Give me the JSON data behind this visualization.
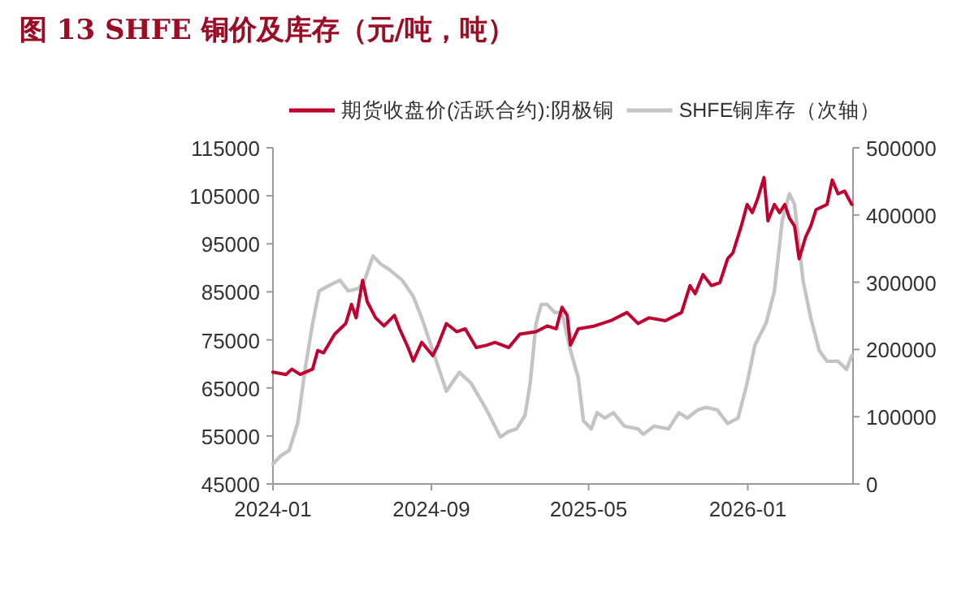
{
  "chart_data": {
    "type": "line",
    "title": "图 13  SHFE 铜价及库存（元/吨，吨）",
    "legend": "top",
    "marker": "none",
    "line_style": "solid",
    "grid": false,
    "xlim": [
      "2024-01-01",
      "2026-06-12"
    ],
    "xticks": [
      "2024-01",
      "2024-09",
      "2025-05",
      "2026-01"
    ],
    "ylim": [
      45000,
      115000
    ],
    "yticks": [
      45000,
      55000,
      65000,
      75000,
      85000,
      95000,
      105000,
      115000
    ],
    "y2lim": [
      0,
      500000
    ],
    "y2ticks": [
      0,
      100000,
      200000,
      300000,
      400000,
      500000
    ],
    "series": [
      {
        "name": "期货收盘价(活跃合约):阴极铜",
        "color": "#c0002f",
        "x": [
          "2024-01-01",
          "2024-01-21",
          "2024-01-30",
          "2024-02-12",
          "2024-03-02",
          "2024-03-10",
          "2024-03-19",
          "2024-04-05",
          "2024-04-22",
          "2024-05-01",
          "2024-05-08",
          "2024-05-18",
          "2024-05-25",
          "2024-06-07",
          "2024-06-20",
          "2024-07-06",
          "2024-07-14",
          "2024-07-27",
          "2024-08-04",
          "2024-08-17",
          "2024-09-03",
          "2024-09-11",
          "2024-09-24",
          "2024-10-10",
          "2024-10-23",
          "2024-11-09",
          "2024-11-25",
          "2024-12-08",
          "2024-12-29",
          "2025-01-15",
          "2025-02-09",
          "2025-02-26",
          "2025-03-12",
          "2025-03-21",
          "2025-03-29",
          "2025-04-03",
          "2025-04-15",
          "2025-05-10",
          "2025-06-04",
          "2025-06-29",
          "2025-07-16",
          "2025-08-02",
          "2025-08-27",
          "2025-09-21",
          "2025-10-04",
          "2025-10-12",
          "2025-10-24",
          "2025-11-06",
          "2025-11-19",
          "2025-12-01",
          "2025-12-09",
          "2025-12-22",
          "2025-12-31",
          "2026-01-08",
          "2026-01-16",
          "2026-01-26",
          "2026-02-01",
          "2026-02-11",
          "2026-02-19",
          "2026-02-27",
          "2026-03-06",
          "2026-03-14",
          "2026-03-21",
          "2026-03-31",
          "2026-04-08",
          "2026-04-16",
          "2026-05-03",
          "2026-05-11",
          "2026-05-20",
          "2026-05-30",
          "2026-06-10"
        ],
        "values": [
          68300,
          67800,
          68900,
          67800,
          68900,
          72800,
          72300,
          76200,
          78400,
          82400,
          79600,
          87400,
          83000,
          79600,
          77900,
          80100,
          77300,
          73400,
          70600,
          74500,
          71700,
          73900,
          78400,
          76700,
          77300,
          73400,
          73900,
          74500,
          73400,
          76200,
          76700,
          77900,
          77300,
          81800,
          80100,
          73900,
          77300,
          77900,
          79000,
          80700,
          78400,
          79600,
          79000,
          80700,
          86300,
          84600,
          88600,
          86300,
          86900,
          91900,
          93100,
          98700,
          103200,
          101500,
          104300,
          108800,
          99800,
          103200,
          101500,
          103200,
          100400,
          98700,
          91900,
          96400,
          98700,
          102100,
          103200,
          108300,
          105400,
          106000,
          103200
        ]
      },
      {
        "name": "SHFE铜库存（次轴）",
        "color": "#c4c4c4",
        "axis": "y2",
        "x": [
          "2024-01-01",
          "2024-01-13",
          "2024-01-26",
          "2024-02-08",
          "2024-02-20",
          "2024-03-02",
          "2024-03-12",
          "2024-03-27",
          "2024-04-13",
          "2024-04-26",
          "2024-05-12",
          "2024-05-21",
          "2024-06-03",
          "2024-06-15",
          "2024-06-28",
          "2024-07-18",
          "2024-08-04",
          "2024-08-17",
          "2024-09-03",
          "2024-09-24",
          "2024-10-14",
          "2024-11-01",
          "2024-11-25",
          "2024-12-16",
          "2024-12-29",
          "2025-01-10",
          "2025-01-23",
          "2025-01-31",
          "2025-02-09",
          "2025-02-17",
          "2025-02-26",
          "2025-03-10",
          "2025-03-21",
          "2025-04-03",
          "2025-04-15",
          "2025-04-23",
          "2025-05-05",
          "2025-05-14",
          "2025-05-26",
          "2025-06-08",
          "2025-06-25",
          "2025-07-16",
          "2025-07-24",
          "2025-08-10",
          "2025-09-01",
          "2025-09-17",
          "2025-09-30",
          "2025-10-16",
          "2025-10-29",
          "2025-11-15",
          "2025-12-01",
          "2025-12-17",
          "2025-12-31",
          "2026-01-12",
          "2026-01-29",
          "2026-02-11",
          "2026-02-23",
          "2026-03-06",
          "2026-03-14",
          "2026-03-27",
          "2026-04-08",
          "2026-04-21",
          "2026-05-03",
          "2026-05-20",
          "2026-06-02",
          "2026-06-10"
        ],
        "values": [
          29700,
          41800,
          49800,
          90000,
          174000,
          238700,
          287000,
          295000,
          303000,
          287000,
          291000,
          303000,
          339000,
          327000,
          319000,
          303000,
          279000,
          247000,
          198500,
          138000,
          166000,
          150000,
          110000,
          70000,
          78000,
          82000,
          102000,
          150000,
          238700,
          267000,
          267000,
          255000,
          255000,
          198500,
          158000,
          94000,
          82000,
          106000,
          98000,
          106000,
          86000,
          82000,
          74000,
          86000,
          82000,
          106000,
          98000,
          110000,
          114000,
          110000,
          90000,
          98000,
          150000,
          206500,
          238700,
          287000,
          391500,
          431700,
          415600,
          303000,
          247000,
          198500,
          182500,
          182500,
          170400,
          190500
        ]
      }
    ]
  }
}
